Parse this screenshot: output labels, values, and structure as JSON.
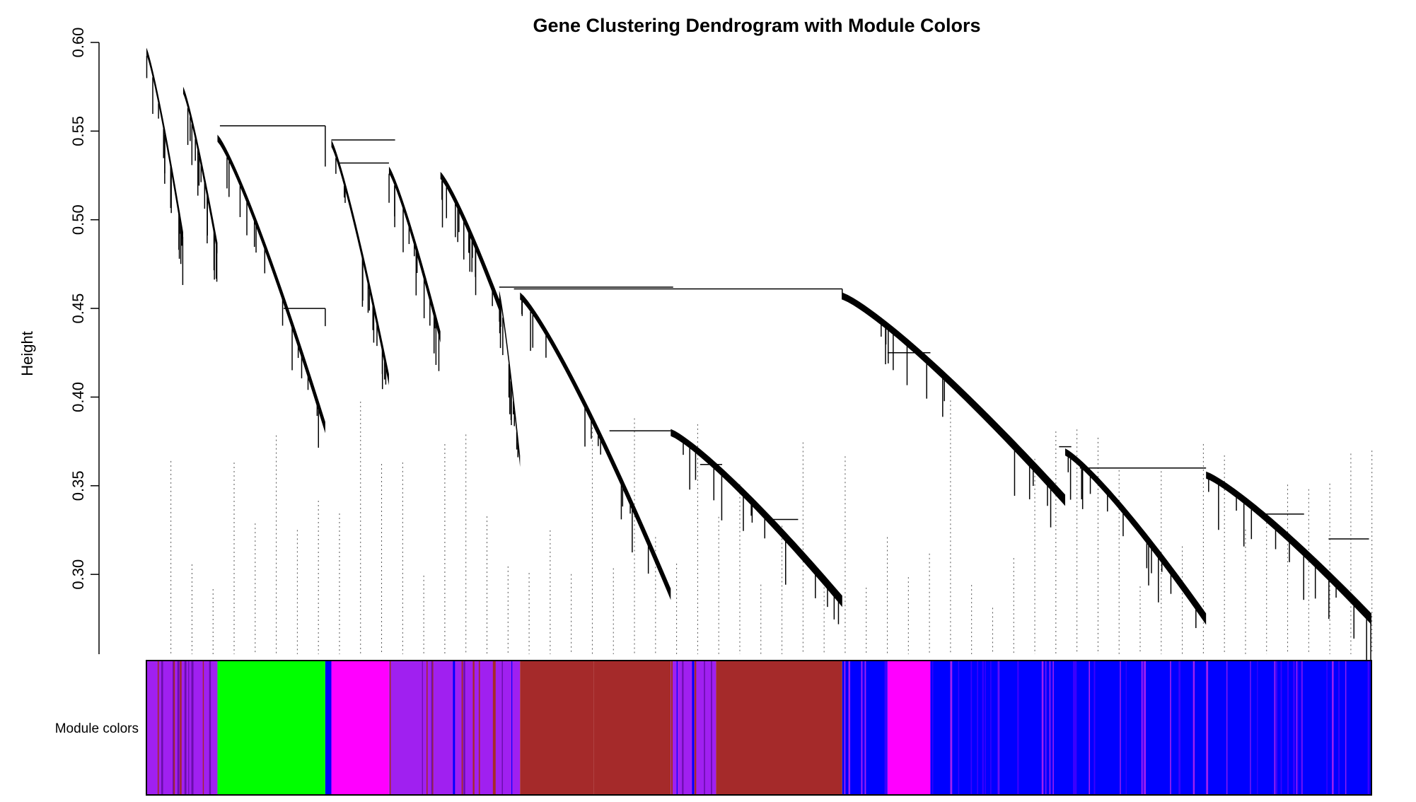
{
  "chart_data": {
    "type": "dendrogram",
    "title": "Gene Clustering Dendrogram with Module Colors",
    "ylabel": "Height",
    "xlabel": "",
    "ylim": [
      0.255,
      0.6
    ],
    "yticks": [
      "0.30",
      "0.35",
      "0.40",
      "0.45",
      "0.50",
      "0.55",
      "0.60"
    ],
    "ytick_values": [
      0.3,
      0.35,
      0.4,
      0.45,
      0.5,
      0.55,
      0.6
    ],
    "color_band_label": "Module colors",
    "module_colors": {
      "purple": "#A020F0",
      "green": "#00FF00",
      "magenta": "#FF00FF",
      "brown": "#A52A2A",
      "blue": "#0000FF"
    },
    "band_segments": [
      {
        "color": "purple",
        "start": 0.0,
        "end": 0.058
      },
      {
        "color": "green",
        "start": 0.058,
        "end": 0.146
      },
      {
        "color": "magenta",
        "start": 0.151,
        "end": 0.198
      },
      {
        "color": "purple",
        "start": 0.198,
        "end": 0.305
      },
      {
        "color": "brown",
        "start": 0.305,
        "end": 0.365
      },
      {
        "color": "brown",
        "start": 0.365,
        "end": 0.428
      },
      {
        "color": "purple",
        "start": 0.428,
        "end": 0.465
      },
      {
        "color": "brown",
        "start": 0.465,
        "end": 0.568
      },
      {
        "color": "blue",
        "start": 0.568,
        "end": 0.605
      },
      {
        "color": "magenta",
        "start": 0.605,
        "end": 0.64
      },
      {
        "color": "blue",
        "start": 0.64,
        "end": 1.0
      }
    ],
    "dendrogram": {
      "root_height": 0.597,
      "left_group": {
        "merge_height": 0.553,
        "subclusters": [
          {
            "start": 0.0,
            "end": 0.03,
            "top": 0.597,
            "leaf_min": 0.493
          },
          {
            "start": 0.03,
            "end": 0.058,
            "top": 0.575,
            "leaf_min": 0.487
          },
          {
            "start": 0.058,
            "end": 0.146,
            "top": 0.548,
            "leaf_min": 0.386
          },
          {
            "start": 0.151,
            "end": 0.198,
            "top": 0.545,
            "leaf_min": 0.413
          },
          {
            "start": 0.198,
            "end": 0.24,
            "top": 0.53,
            "leaf_min": 0.437
          },
          {
            "start": 0.24,
            "end": 0.288,
            "top": 0.527,
            "leaf_min": 0.455
          }
        ]
      },
      "right_group": {
        "merge_height": 0.461,
        "subclusters": [
          {
            "start": 0.288,
            "end": 0.305,
            "top": 0.46,
            "leaf_min": 0.367
          },
          {
            "start": 0.305,
            "end": 0.428,
            "top": 0.459,
            "leaf_min": 0.292
          },
          {
            "start": 0.428,
            "end": 0.568,
            "top": 0.382,
            "leaf_min": 0.288
          },
          {
            "start": 0.568,
            "end": 0.75,
            "top": 0.459,
            "leaf_min": 0.345
          },
          {
            "start": 0.75,
            "end": 0.865,
            "top": 0.371,
            "leaf_min": 0.278
          },
          {
            "start": 0.865,
            "end": 1.0,
            "top": 0.358,
            "leaf_min": 0.278
          }
        ]
      }
    },
    "dotted_leaf_guides": true,
    "grid": false,
    "legend": "none"
  }
}
